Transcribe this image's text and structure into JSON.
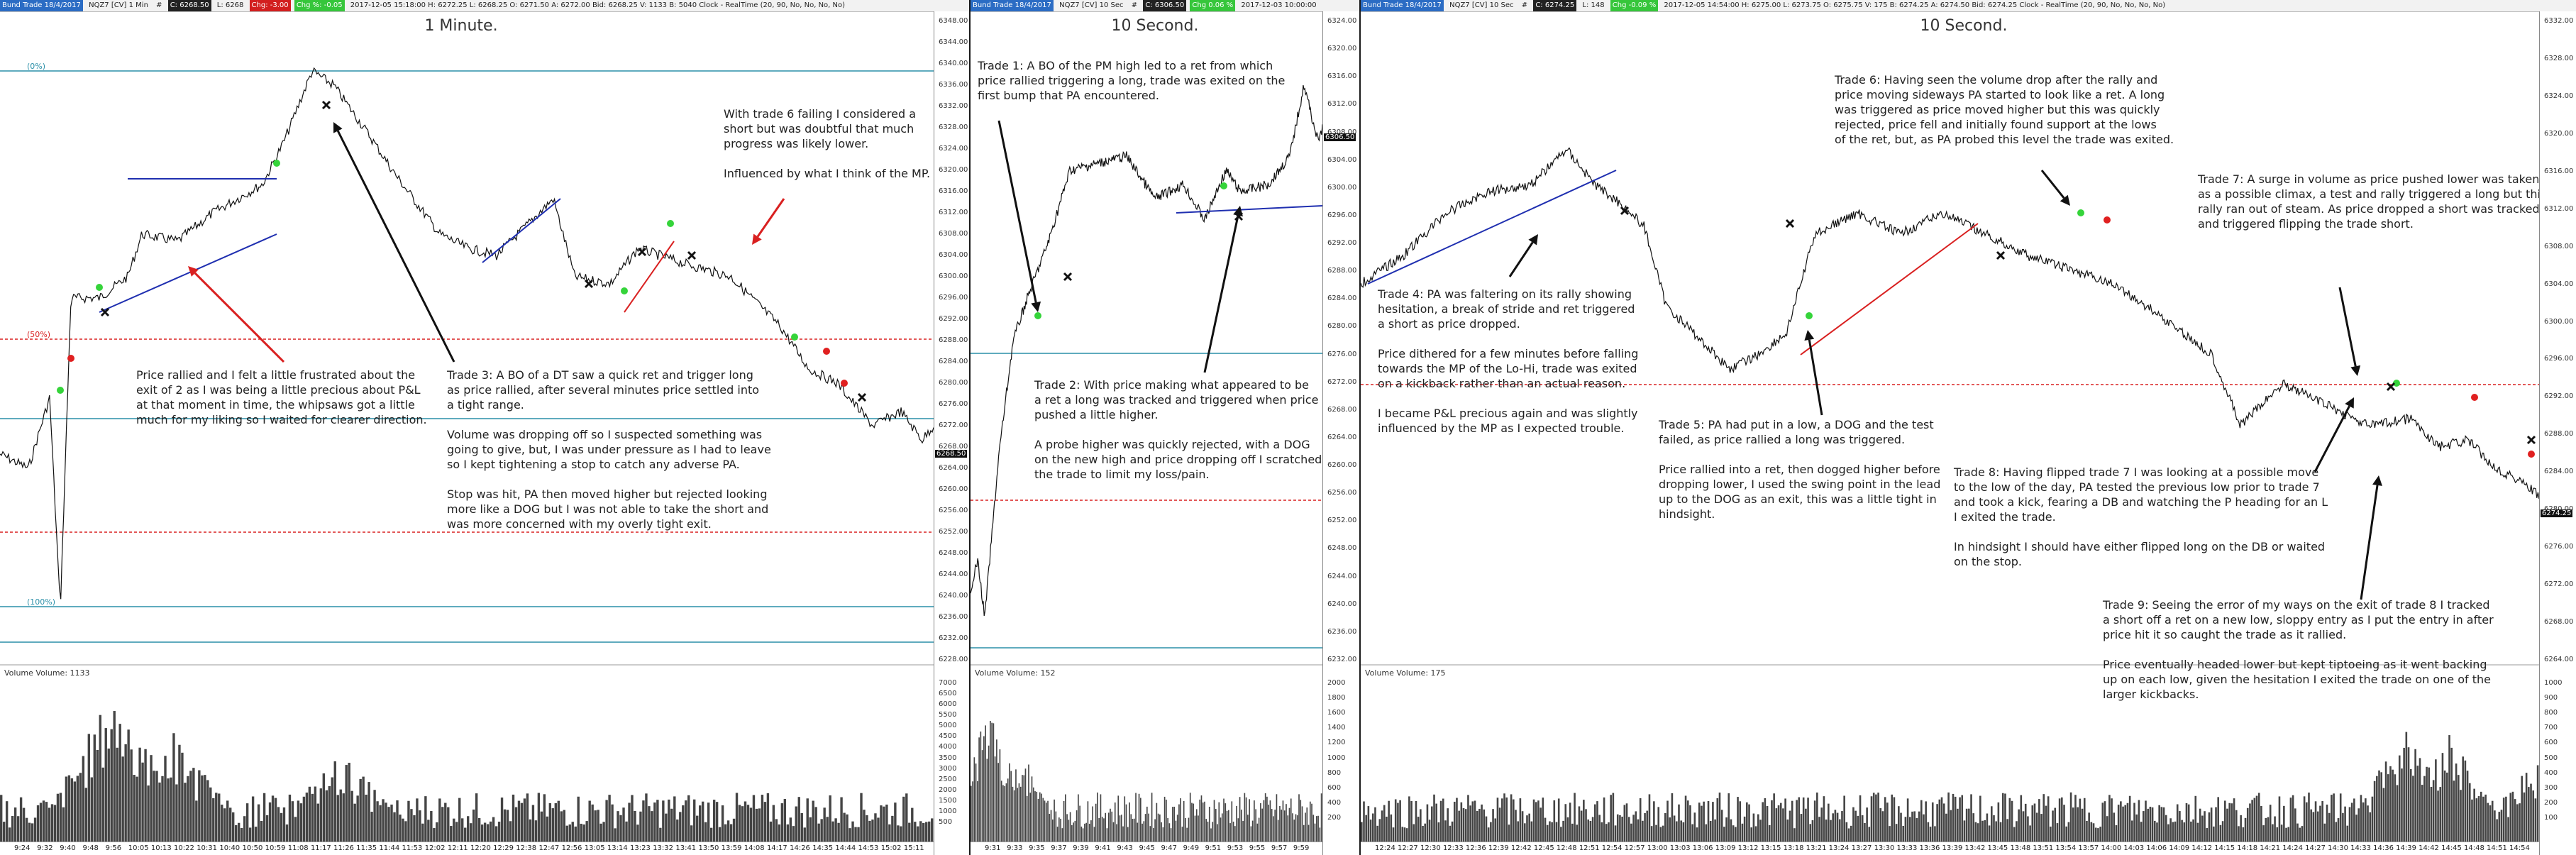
{
  "panels": [
    {
      "title": "1 Minute.",
      "titlebar": {
        "app": "Bund Trade 18/4/2017",
        "symbol": "NQZ7 [CV] 1 Min",
        "open": "#",
        "c_label": "C: 6268.50",
        "h": "L: 6268",
        "chg": "Chg: -3.00",
        "vol": "Chg %: -0.05",
        "rest": "2017-12-05 15:18:00 H: 6272.25 L: 6268.25 O: 6271.50 A: 6272.00 Bid: 6268.25 V: 1133 B: 5040 Clock - RealTime  (20, 90, No, No, No, No)"
      },
      "price_ticks": [
        "6348.00",
        "6344.00",
        "6340.00",
        "6336.00",
        "6332.00",
        "6328.00",
        "6324.00",
        "6320.00",
        "6316.00",
        "6312.00",
        "6308.00",
        "6304.00",
        "6300.00",
        "6296.00",
        "6292.00",
        "6288.00",
        "6284.00",
        "6280.00",
        "6276.00",
        "6272.00",
        "6268.00",
        "6264.00",
        "6260.00",
        "6256.00",
        "6252.00",
        "6248.00",
        "6244.00",
        "6240.00",
        "6236.00",
        "6232.00",
        "6228.00"
      ],
      "last_price": "6268.50",
      "level_labels": [
        "(0%)",
        "(50%)",
        "(100%)"
      ],
      "volume_label": "Volume  Volume: 1133",
      "volume_ticks": [
        "7000",
        "6500",
        "6000",
        "5500",
        "5000",
        "4500",
        "4000",
        "3500",
        "3000",
        "2500",
        "2000",
        "1500",
        "1000",
        "500"
      ],
      "time_ticks": [
        "9:24",
        "9:32",
        "9:40",
        "9:48",
        "9:56",
        "10:05",
        "10:13",
        "10:22",
        "10:31",
        "10:40",
        "10:50",
        "10:59",
        "11:08",
        "11:17",
        "11:26",
        "11:35",
        "11:44",
        "11:53",
        "12:02",
        "12:11",
        "12:20",
        "12:29",
        "12:38",
        "12:47",
        "12:56",
        "13:05",
        "13:14",
        "13:23",
        "13:32",
        "13:41",
        "13:50",
        "13:59",
        "14:08",
        "14:17",
        "14:26",
        "14:35",
        "14:44",
        "14:53",
        "15:02",
        "15:11"
      ],
      "notes": [
        "Price rallied and I felt a little frustrated about the\nexit of 2 as I was being a little precious about P&L\nat that moment in time, the whipsaws got a little\nmuch for my liking so I waited for clearer direction.",
        "Trade 3:  A BO of a DT saw a quick ret and trigger long\nas price rallied, after several minutes price settled into\na tight range.\n\nVolume was dropping off so I suspected something was\ngoing to give, but, I was under pressure as I had to leave\nso I kept tightening a stop to catch any adverse PA.\n\nStop was hit, PA then moved higher but rejected looking\nmore like a DOG but I was not able to take the short and\nwas more concerned with my overly tight exit.",
        "With trade 6 failing I considered a\nshort but was doubtful that much\nprogress was likely lower.\n\nInfluenced by what I think of the MP."
      ]
    },
    {
      "title": "10 Second.",
      "titlebar": {
        "app": "Bund Trade 18/4/2017",
        "symbol": "NQZ7 [CV] 10 Sec",
        "open": "#",
        "c_label": "C: 6306.50",
        "h": "",
        "chg": "",
        "vol": "Chg 0.06 %",
        "rest": "2017-12-03 10:00:00"
      },
      "price_ticks": [
        "6324.00",
        "6320.00",
        "6316.00",
        "6312.00",
        "6308.00",
        "6304.00",
        "6300.00",
        "6296.00",
        "6292.00",
        "6288.00",
        "6284.00",
        "6280.00",
        "6276.00",
        "6272.00",
        "6268.00",
        "6264.00",
        "6260.00",
        "6256.00",
        "6252.00",
        "6248.00",
        "6244.00",
        "6240.00",
        "6236.00",
        "6232.00"
      ],
      "last_price": "6306.50",
      "volume_label": "Volume  Volume: 152",
      "volume_ticks": [
        "2000",
        "1800",
        "1600",
        "1400",
        "1200",
        "1000",
        "800",
        "600",
        "400",
        "200"
      ],
      "time_ticks": [
        "9:31",
        "9:33",
        "9:35",
        "9:37",
        "9:39",
        "9:41",
        "9:43",
        "9:45",
        "9:47",
        "9:49",
        "9:51",
        "9:53",
        "9:55",
        "9:57",
        "9:59"
      ],
      "notes": [
        "Trade 1:  A BO of the PM high led to a ret from which\nprice rallied triggering a long, trade was exited on the\nfirst bump that PA encountered.",
        "Trade 2:  With price making what appeared to be\na ret a long was tracked and triggered when price\npushed a little higher.\n\nA probe higher was quickly rejected, with a DOG\non the new high and price dropping off I scratched\nthe trade to limit my loss/pain."
      ]
    },
    {
      "title": "10 Second.",
      "titlebar": {
        "app": "Bund Trade 18/4/2017",
        "symbol": "NQZ7 [CV] 10 Sec",
        "open": "#",
        "c_label": "C: 6274.25",
        "h": "L: 148",
        "chg": "",
        "vol": "Chg -0.09 %",
        "rest": "2017-12-05 14:54:00 H: 6275.00 L: 6273.75 O: 6275.75 V: 175 B: 6274.25 A: 6274.50 Bid: 6274.25 Clock - RealTime  (20, 90, No, No, No, No)"
      },
      "price_ticks": [
        "6332.00",
        "6328.00",
        "6324.00",
        "6320.00",
        "6316.00",
        "6312.00",
        "6308.00",
        "6304.00",
        "6300.00",
        "6296.00",
        "6292.00",
        "6288.00",
        "6284.00",
        "6280.00",
        "6276.00",
        "6272.00",
        "6268.00",
        "6264.00"
      ],
      "last_price": "6274.25",
      "volume_label": "Volume  Volume: 175",
      "volume_ticks": [
        "1000",
        "900",
        "800",
        "700",
        "600",
        "500",
        "400",
        "300",
        "200",
        "100"
      ],
      "time_ticks": [
        "12:24",
        "12:27",
        "12:30",
        "12:33",
        "12:36",
        "12:39",
        "12:42",
        "12:45",
        "12:48",
        "12:51",
        "12:54",
        "12:57",
        "13:00",
        "13:03",
        "13:06",
        "13:09",
        "13:12",
        "13:15",
        "13:18",
        "13:21",
        "13:24",
        "13:27",
        "13:30",
        "13:33",
        "13:36",
        "13:39",
        "13:42",
        "13:45",
        "13:48",
        "13:51",
        "13:54",
        "13:57",
        "14:00",
        "14:03",
        "14:06",
        "14:09",
        "14:12",
        "14:15",
        "14:18",
        "14:21",
        "14:24",
        "14:27",
        "14:30",
        "14:33",
        "14:36",
        "14:39",
        "14:42",
        "14:45",
        "14:48",
        "14:51",
        "14:54"
      ],
      "notes": [
        "Trade 6:  Having seen the volume drop after the rally and\nprice moving sideways PA started to look like a ret.  A long\nwas triggered as price moved higher but this was quickly\nrejected, price fell and initially found support at the lows\nof the ret, but, as PA probed this level the trade was exited.",
        "Trade 7:  A surge in volume as price pushed lower was taken\nas a possible climax, a test and rally triggered a long but this\nrally ran out of steam.  As price dropped a short was tracked\nand triggered flipping the trade short.",
        "Trade 4:  PA was faltering on its rally showing\nhesitation, a break of stride and ret triggered\na short as price dropped.\n\nPrice dithered for a few minutes before falling\ntowards the MP of the Lo-Hi, trade was exited\non a kickback rather than an actual reason.\n\nI became P&L precious again and was slightly\ninfluenced by the MP as I expected trouble.",
        "Trade 5:  PA had put in a low, a DOG and the test\nfailed, as price rallied a long was triggered.\n\nPrice rallied into a ret, then dogged higher before\ndropping lower, I used the swing point in the lead\nup to the DOG as an exit, this was a little tight in\nhindsight.",
        "Trade 8:  Having flipped trade 7 I was looking at a possible move\nto the low of the day, PA tested the previous low prior to trade 7\nand took a kick, fearing a DB and watching the P heading for an L\nI exited the trade.\n\nIn hindsight I should have either flipped long on the DB or waited\non the stop.",
        "Trade 9:  Seeing the error of my ways on the exit of trade 8 I tracked\na short off a ret on a new low, sloppy entry as I put the entry in after\nprice hit it so caught the trade as it rallied.\n\nPrice eventually headed lower but kept tiptoeing as it went backing\nup on each low, given the hesitation I exited the trade on one of the\nlarger kickbacks."
      ]
    }
  ],
  "colors": {
    "price_line": "#111111",
    "trend_blue": "#1f2fb0",
    "trend_red": "#d92020",
    "level_teal": "#2a8fa8",
    "level_red_dash": "#d92020",
    "entry_green": "#35d43a",
    "exit_red": "#e02020",
    "exit_x": "#111111",
    "volume_bar": "#444444",
    "arrow_black": "#111111",
    "arrow_red": "#d92020"
  }
}
